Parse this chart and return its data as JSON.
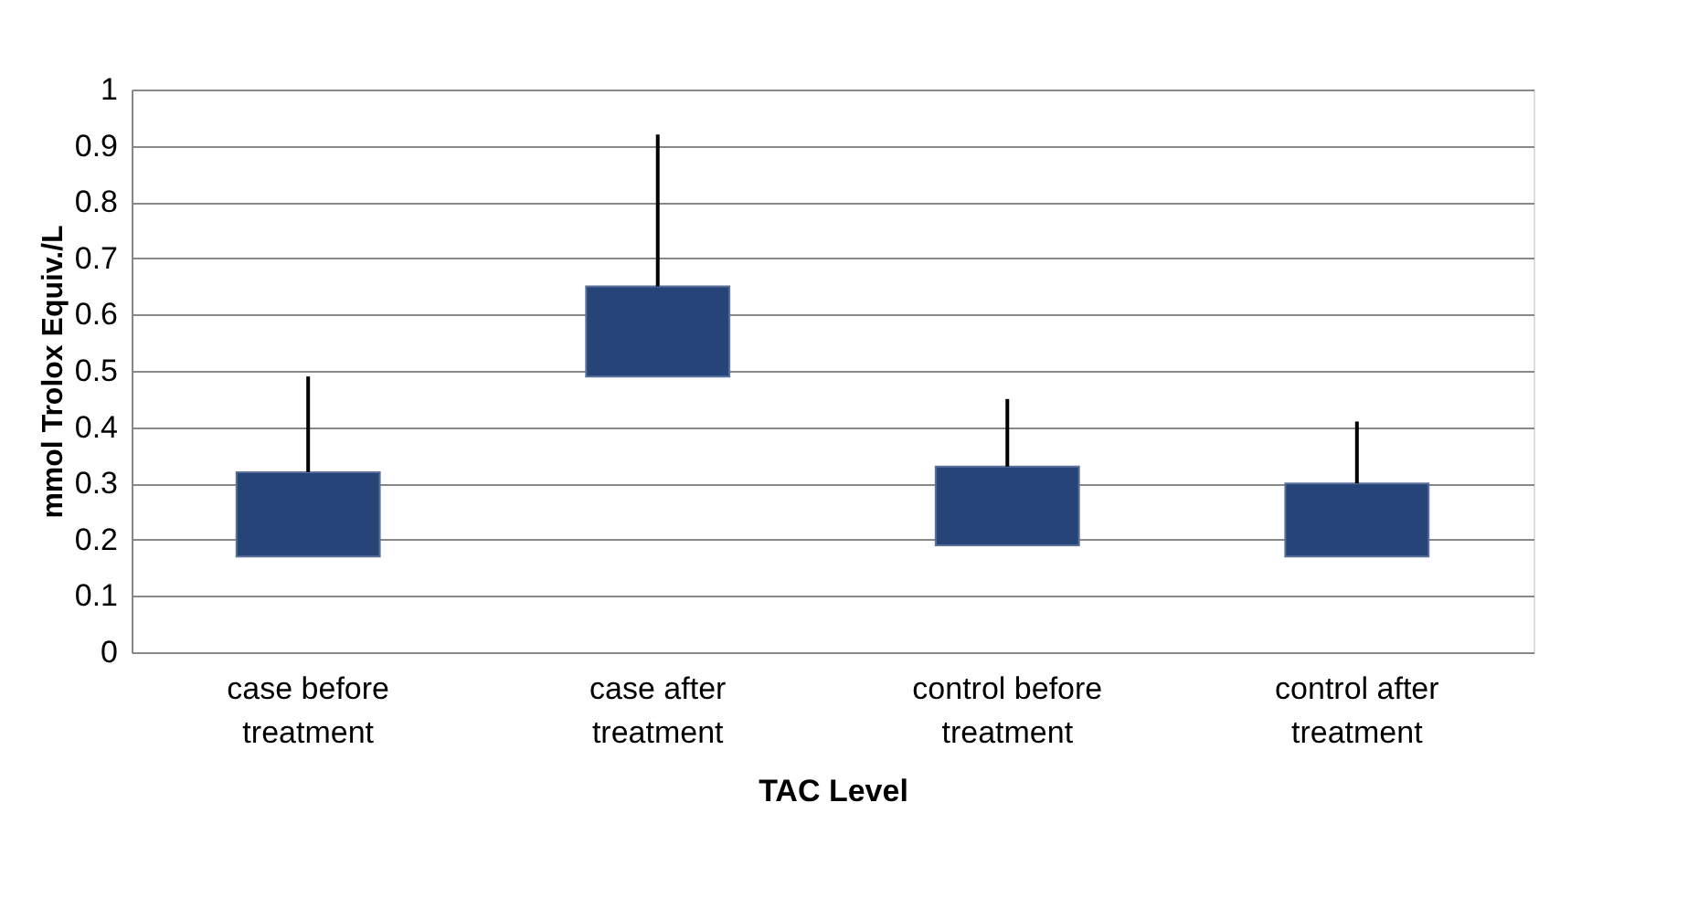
{
  "chart_data": {
    "type": "bar",
    "categories": [
      "case before treatment",
      "case after treatment",
      "control before treatment",
      "control after treatment"
    ],
    "base": [
      0.17,
      0.49,
      0.19,
      0.17
    ],
    "values": [
      0.15,
      0.16,
      0.14,
      0.13
    ],
    "errors": [
      [
        0.32,
        0.49
      ],
      [
        0.65,
        0.92
      ],
      [
        0.33,
        0.45
      ],
      [
        0.3,
        0.41
      ]
    ],
    "color": "#264478",
    "xlabel": "TAC Level",
    "ylabel": "mmol Trolox Equiv./L",
    "ylim": [
      0,
      1
    ],
    "yticks": [
      0,
      0.1,
      0.2,
      0.3,
      0.4,
      0.5,
      0.6,
      0.7,
      0.8,
      0.9,
      1
    ],
    "grid": "y"
  }
}
